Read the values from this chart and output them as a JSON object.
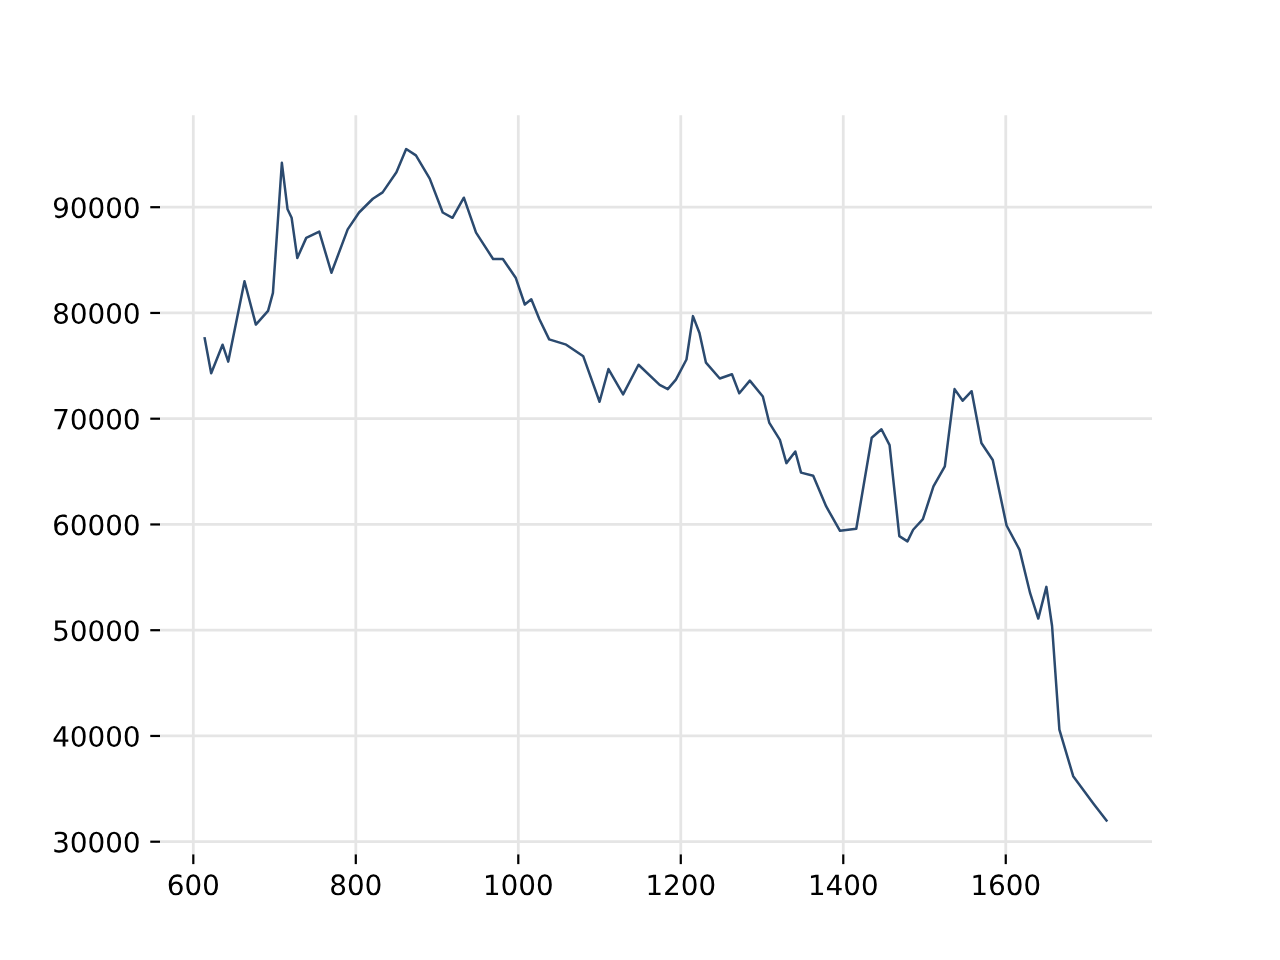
{
  "chart_data": {
    "type": "line",
    "xlim": [
      559,
      1780
    ],
    "ylim": [
      28800,
      98700
    ],
    "xticks": [
      600,
      800,
      1000,
      1200,
      1400,
      1600
    ],
    "yticks": [
      30000,
      40000,
      50000,
      60000,
      70000,
      80000,
      90000
    ],
    "grid": true,
    "line_style": "solid",
    "series": [
      {
        "color": "#2b4a6f",
        "x": [
          614,
          622,
          636,
          643,
          663,
          677,
          692,
          698,
          709,
          716,
          721,
          728,
          739,
          755,
          770,
          790,
          804,
          821,
          833,
          850,
          862,
          874,
          891,
          907,
          919,
          933,
          948,
          969,
          981,
          997,
          1008,
          1016,
          1026,
          1038,
          1059,
          1080,
          1100,
          1111,
          1129,
          1148,
          1174,
          1184,
          1194,
          1207,
          1215,
          1223,
          1231,
          1248,
          1263,
          1272,
          1285,
          1301,
          1309,
          1322,
          1330,
          1341,
          1348,
          1363,
          1379,
          1396,
          1416,
          1435,
          1447,
          1457,
          1469,
          1479,
          1486,
          1498,
          1511,
          1525,
          1537,
          1547,
          1558,
          1570,
          1584,
          1601,
          1617,
          1630,
          1640,
          1650,
          1657,
          1666,
          1683,
          1708,
          1724
        ],
        "values": [
          77600,
          74300,
          77000,
          75400,
          83000,
          78900,
          80200,
          81900,
          94200,
          89800,
          89000,
          85200,
          87100,
          87700,
          83800,
          87900,
          89500,
          90800,
          91400,
          93300,
          95500,
          94900,
          92700,
          89500,
          89000,
          90900,
          87600,
          85100,
          85100,
          83300,
          80800,
          81300,
          79400,
          77500,
          77000,
          75900,
          71600,
          74700,
          72300,
          75100,
          73200,
          72800,
          73700,
          75600,
          79700,
          78100,
          75300,
          73800,
          74200,
          72400,
          73600,
          72100,
          69600,
          68000,
          65800,
          66900,
          64900,
          64600,
          61700,
          59400,
          59600,
          68200,
          69000,
          67500,
          58900,
          58400,
          59500,
          60500,
          63600,
          65500,
          72800,
          71700,
          72600,
          67700,
          66100,
          59900,
          57600,
          53500,
          51100,
          54100,
          50400,
          40600,
          36200,
          33600,
          32000
        ]
      }
    ]
  }
}
